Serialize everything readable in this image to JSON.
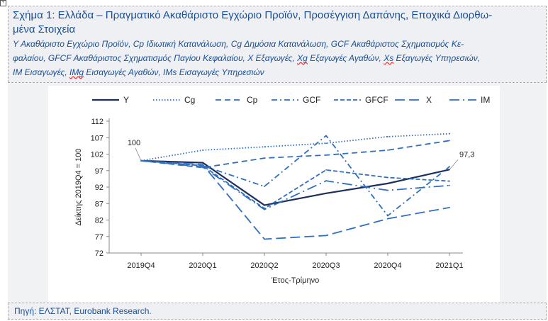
{
  "document": {
    "title": "Σχήμα 1: Ελλάδα – Πραγματικό Ακαθάριστο Εγχώριο Προϊόν, Προσέγγιση Δαπάνης, Εποχικά Διορθω-",
    "title_line2": "μένα Στοιχεία",
    "subtitle_line1": "Y Ακαθάριστο Εγχώριο Προϊόν, Cp Ιδιωτική Κατανάλωση, Cg Δημόσια Κατανάλωση, GCF Ακαθάριστος Σχηματισμός Κε-",
    "subtitle_line2_a": "φαλαίου, GFCF Ακαθάριστος Σχηματισμός Παγίου Κεφαλαίου, X Εξαγωγές, ",
    "subtitle_line2_xg": "Xg",
    "subtitle_line2_b": " Εξαγωγές Αγαθών, ",
    "subtitle_line2_xs": "Xs",
    "subtitle_line2_c": " Εξαγωγές Υπηρεσιών,",
    "subtitle_line3_a": "IM Εισαγωγές, ",
    "subtitle_line3_img": "IMg",
    "subtitle_line3_b": " Εισαγωγές Αγαθών, IMs Εισαγωγές Υπηρεσιών",
    "source": "Πηγή: ΕΛΣΤΑΤ, Eurobank Research."
  },
  "colors": {
    "title_text": "#1a4f94",
    "panel_bg": "#eef0f3",
    "y_series": "#1f2f5c",
    "other_series": "#2f6fbd"
  },
  "chart_data": {
    "type": "line",
    "x": [
      "2019Q4",
      "2020Q1",
      "2020Q2",
      "2020Q3",
      "2020Q4",
      "2021Q1"
    ],
    "xlabel": "Έτος-Τρίμηνο",
    "ylabel": "Δείκτης 2019Q4 = 100",
    "ylim": [
      72,
      112
    ],
    "yticks": [
      "72",
      "77",
      "82",
      "87",
      "92",
      "97",
      "102",
      "107",
      "112"
    ],
    "grid": false,
    "legend_position": "top",
    "annotations": [
      {
        "text": "100",
        "series": "Y",
        "x": "2019Q4"
      },
      {
        "text": "97,3",
        "series": "Y",
        "x": "2021Q1"
      }
    ],
    "series": [
      {
        "name": "Y",
        "dash": "solid",
        "values": [
          100,
          99.4,
          86.5,
          90.1,
          93.1,
          97.3
        ]
      },
      {
        "name": "Cg",
        "dash": "dot",
        "values": [
          100,
          103.2,
          104.2,
          105.3,
          107.3,
          108.2
        ]
      },
      {
        "name": "Cp",
        "dash": "dash",
        "values": [
          100,
          97.9,
          100.8,
          101.7,
          103.2,
          106.1
        ]
      },
      {
        "name": "GCF",
        "dash": "dashdot",
        "values": [
          100,
          98.5,
          92.2,
          107.6,
          83.3,
          98.2
        ]
      },
      {
        "name": "GFCF",
        "dash": "dash-short",
        "values": [
          100,
          98.5,
          85.5,
          97.2,
          94.9,
          93.8
        ]
      },
      {
        "name": "X",
        "dash": "longdash",
        "values": [
          100,
          98.8,
          76.2,
          77.3,
          82.4,
          85.8
        ]
      },
      {
        "name": "IM",
        "dash": "longdashdot",
        "values": [
          100,
          98.1,
          85.2,
          93.9,
          91.0,
          92.5
        ]
      }
    ]
  }
}
